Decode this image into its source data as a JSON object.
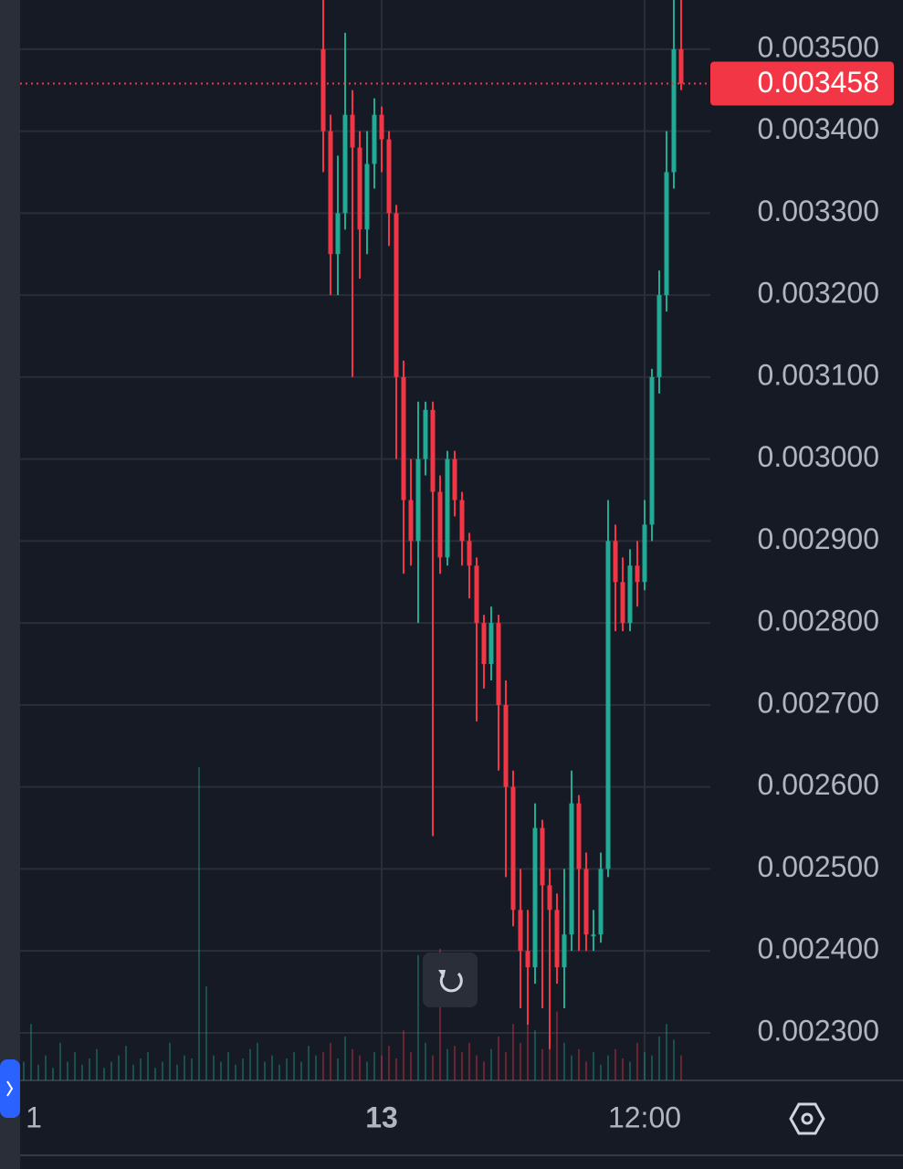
{
  "chart_data": {
    "type": "candlestick",
    "categories": [
      null,
      "1",
      null,
      null,
      null,
      null,
      null,
      null,
      null,
      null,
      null,
      null,
      null,
      null,
      null,
      null,
      null,
      null,
      null,
      null,
      null,
      null,
      null,
      null,
      null,
      null,
      null,
      null,
      null,
      null,
      null,
      null,
      null,
      null,
      null,
      null,
      null,
      null,
      null,
      null,
      null,
      null,
      null,
      null,
      null,
      null,
      null,
      null,
      null,
      "13",
      null,
      null,
      null,
      null,
      null,
      null,
      null,
      null,
      null,
      null,
      null,
      null,
      null,
      null,
      null,
      null,
      null,
      null,
      null,
      null,
      null,
      null,
      null,
      null,
      null,
      null,
      null,
      null,
      null,
      null,
      null,
      null,
      null,
      null,
      null,
      "12:00",
      null,
      null,
      null,
      null,
      null,
      null,
      null,
      null
    ],
    "open": [
      null,
      null,
      null,
      null,
      null,
      null,
      null,
      null,
      null,
      null,
      null,
      null,
      null,
      null,
      null,
      null,
      null,
      null,
      null,
      null,
      null,
      null,
      null,
      null,
      null,
      null,
      null,
      null,
      null,
      null,
      null,
      null,
      null,
      null,
      null,
      null,
      null,
      null,
      null,
      null,
      null,
      0.0035,
      0.0034,
      0.00325,
      0.0033,
      0.00342,
      0.00338,
      0.00328,
      0.00336,
      0.00342,
      0.00339,
      0.0033,
      0.0031,
      0.00295,
      0.0029,
      0.003,
      0.00306,
      0.00296,
      0.00288,
      0.003,
      0.00295,
      0.0029,
      0.00287,
      0.0028,
      0.00275,
      0.0028,
      0.0027,
      0.0026,
      0.00245,
      0.0024,
      0.00238,
      0.00255,
      0.00248,
      0.00245,
      0.00238,
      0.00242,
      0.00258,
      0.0025,
      0.00242,
      0.00242,
      0.0025,
      0.0029,
      0.00285,
      0.0028,
      0.00287,
      0.00285,
      0.00292,
      0.0031,
      0.0032,
      0.00335,
      0.0035,
      null,
      null,
      null
    ],
    "high": [
      null,
      null,
      null,
      null,
      null,
      null,
      null,
      null,
      null,
      null,
      null,
      null,
      null,
      null,
      null,
      null,
      null,
      null,
      null,
      null,
      null,
      null,
      null,
      null,
      null,
      null,
      null,
      null,
      null,
      null,
      null,
      null,
      null,
      null,
      null,
      null,
      null,
      null,
      null,
      null,
      null,
      0.00356,
      0.00342,
      0.00337,
      0.00352,
      0.00345,
      0.0034,
      0.0034,
      0.00344,
      0.00343,
      0.0034,
      0.00331,
      0.00312,
      0.003,
      0.00307,
      0.00307,
      0.00307,
      0.00298,
      0.00301,
      0.00301,
      0.00296,
      0.00291,
      0.00288,
      0.00281,
      0.00282,
      0.00281,
      0.00273,
      0.00262,
      0.0025,
      0.00245,
      0.00258,
      0.00256,
      0.0025,
      0.00247,
      0.0025,
      0.00262,
      0.00259,
      0.00252,
      0.00245,
      0.00252,
      0.00295,
      0.00292,
      0.00288,
      0.00289,
      0.0029,
      0.00295,
      0.00311,
      0.00323,
      0.0034,
      0.00356,
      0.00356,
      null,
      null,
      null
    ],
    "low": [
      null,
      null,
      null,
      null,
      null,
      null,
      null,
      null,
      null,
      null,
      null,
      null,
      null,
      null,
      null,
      null,
      null,
      null,
      null,
      null,
      null,
      null,
      null,
      null,
      null,
      null,
      null,
      null,
      null,
      null,
      null,
      null,
      null,
      null,
      null,
      null,
      null,
      null,
      null,
      null,
      null,
      0.00335,
      0.0032,
      0.0032,
      0.00328,
      0.0031,
      0.00322,
      0.00325,
      0.00333,
      0.00335,
      0.00326,
      0.003,
      0.00286,
      0.00287,
      0.0028,
      0.00298,
      0.00254,
      0.00286,
      0.00287,
      0.00293,
      0.00287,
      0.00283,
      0.00268,
      0.00272,
      0.00273,
      0.00262,
      0.00249,
      0.00243,
      0.00233,
      0.00231,
      0.00236,
      0.00233,
      0.00228,
      0.00236,
      0.00233,
      0.0024,
      0.0024,
      0.0024,
      0.0024,
      0.00241,
      0.00249,
      0.00279,
      0.00279,
      0.00279,
      0.00282,
      0.00284,
      0.0029,
      0.00308,
      0.00318,
      0.00333,
      0.00345,
      null,
      null,
      null
    ],
    "close": [
      null,
      null,
      null,
      null,
      null,
      null,
      null,
      null,
      null,
      null,
      null,
      null,
      null,
      null,
      null,
      null,
      null,
      null,
      null,
      null,
      null,
      null,
      null,
      null,
      null,
      null,
      null,
      null,
      null,
      null,
      null,
      null,
      null,
      null,
      null,
      null,
      null,
      null,
      null,
      null,
      null,
      0.0034,
      0.00325,
      0.0033,
      0.00342,
      0.00338,
      0.00328,
      0.00336,
      0.00342,
      0.00339,
      0.0033,
      0.0031,
      0.00295,
      0.0029,
      0.003,
      0.00306,
      0.00296,
      0.00288,
      0.003,
      0.00295,
      0.0029,
      0.00287,
      0.0028,
      0.00275,
      0.0028,
      0.0027,
      0.0026,
      0.00245,
      0.0024,
      0.00238,
      0.00255,
      0.00248,
      0.00245,
      0.00238,
      0.00242,
      0.00258,
      0.0025,
      0.00242,
      0.00242,
      0.0025,
      0.0029,
      0.00285,
      0.0028,
      0.00287,
      0.00285,
      0.00292,
      0.0031,
      0.0032,
      0.00335,
      0.0035,
      0.003458,
      null,
      null,
      null
    ],
    "volume": [
      6,
      18,
      5,
      8,
      4,
      12,
      6,
      9,
      5,
      7,
      10,
      4,
      6,
      8,
      11,
      5,
      7,
      9,
      4,
      6,
      12,
      5,
      8,
      7,
      100,
      30,
      8,
      6,
      9,
      5,
      7,
      10,
      12,
      6,
      8,
      5,
      7,
      9,
      6,
      11,
      8,
      9,
      12,
      7,
      14,
      10,
      8,
      6,
      9,
      8,
      11,
      7,
      16,
      9,
      40,
      12,
      8,
      42,
      10,
      11,
      9,
      12,
      8,
      6,
      10,
      14,
      9,
      18,
      12,
      20,
      16,
      10,
      14,
      22,
      12,
      8,
      10,
      6,
      9,
      5,
      8,
      10,
      7,
      6,
      12,
      9,
      8,
      14,
      18,
      13,
      8,
      null,
      null,
      null
    ],
    "ylim": [
      0.002242,
      0.00356
    ],
    "yticks": [
      {
        "value": 0.0023,
        "label": "0.002300"
      },
      {
        "value": 0.0024,
        "label": "0.002400"
      },
      {
        "value": 0.0025,
        "label": "0.002500"
      },
      {
        "value": 0.0026,
        "label": "0.002600"
      },
      {
        "value": 0.0027,
        "label": "0.002700"
      },
      {
        "value": 0.0028,
        "label": "0.002800"
      },
      {
        "value": 0.0029,
        "label": "0.002900"
      },
      {
        "value": 0.003,
        "label": "0.003000"
      },
      {
        "value": 0.0031,
        "label": "0.003100"
      },
      {
        "value": 0.0032,
        "label": "0.003200"
      },
      {
        "value": 0.0033,
        "label": "0.003300"
      },
      {
        "value": 0.0034,
        "label": "0.003400"
      },
      {
        "value": 0.0035,
        "label": "0.003500"
      }
    ],
    "grid": true,
    "up_color": "#22ab94",
    "down_color": "#f23645"
  }
}
